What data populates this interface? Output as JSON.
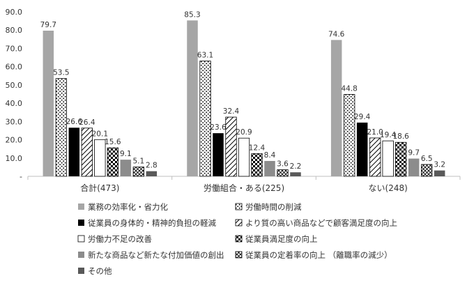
{
  "chart_data": {
    "type": "bar",
    "title": "",
    "xlabel": "",
    "ylabel": "",
    "ylim": [
      0,
      90
    ],
    "y_ticks": [
      {
        "value": 0,
        "label": "-"
      },
      {
        "value": 10,
        "label": "10.0"
      },
      {
        "value": 20,
        "label": "20.0"
      },
      {
        "value": 30,
        "label": "30.0"
      },
      {
        "value": 40,
        "label": "40.0"
      },
      {
        "value": 50,
        "label": "50.0"
      },
      {
        "value": 60,
        "label": "60.0"
      },
      {
        "value": 70,
        "label": "70.0"
      },
      {
        "value": 80,
        "label": "80.0"
      },
      {
        "value": 90,
        "label": "90.0"
      }
    ],
    "grid": false,
    "legend_position": "bottom",
    "categories": [
      "合計(473)",
      "労働組合・ある(225)",
      "ない(248)"
    ],
    "series": [
      {
        "name": "業務の効率化・省力化",
        "values": [
          79.7,
          85.3,
          74.6
        ],
        "fill": "solid",
        "color": "#a6a6a6"
      },
      {
        "name": "労働時間の削減",
        "values": [
          53.5,
          63.1,
          44.8
        ],
        "fill": "dots",
        "color": "#ffffff"
      },
      {
        "name": "従業員の身体的・精神的負担の軽減",
        "values": [
          26.6,
          23.6,
          29.4
        ],
        "fill": "solid",
        "color": "#000000"
      },
      {
        "name": "より質の高い商品などで顧客満足度の向上",
        "values": [
          26.4,
          32.4,
          21.0
        ],
        "fill": "diag",
        "color": "#ffffff"
      },
      {
        "name": "労働力不足の改善",
        "values": [
          20.1,
          20.9,
          19.4
        ],
        "fill": "solid",
        "color": "#ffffff"
      },
      {
        "name": "従業員満足度の向上",
        "values": [
          15.6,
          12.4,
          18.6
        ],
        "fill": "checker",
        "color": "#ffffff"
      },
      {
        "name": "新たな商品など新たな付加価値の創出",
        "values": [
          9.1,
          8.4,
          9.7
        ],
        "fill": "solid",
        "color": "#8c8c8c"
      },
      {
        "name": "従業員の定着率の向上 （離職率の減少）",
        "values": [
          5.1,
          3.6,
          6.5
        ],
        "fill": "crossdiag",
        "color": "#ffffff"
      },
      {
        "name": "その他",
        "values": [
          2.8,
          2.2,
          3.2
        ],
        "fill": "solid",
        "color": "#595959"
      }
    ],
    "data_labels": [
      [
        "79.7",
        "53.5",
        "26.6",
        "26.4",
        "20.1",
        "15.6",
        "9.1",
        "5.1",
        "2.8"
      ],
      [
        "85.3",
        "63.1",
        "23.6",
        "32.4",
        "20.9",
        "12.4",
        "8.4",
        "3.6",
        "2.2"
      ],
      [
        "74.6",
        "44.8",
        "29.4",
        "21.0",
        "19.4",
        "18.6",
        "9.7",
        "6.5",
        "3.2"
      ]
    ]
  }
}
